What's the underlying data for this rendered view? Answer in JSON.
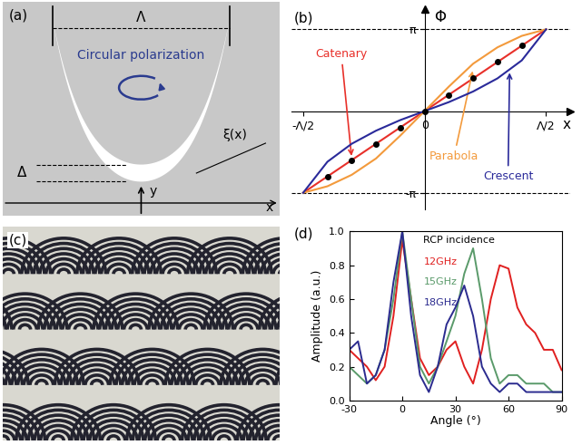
{
  "panel_labels": [
    "(a)",
    "(b)",
    "(c)",
    "(d)"
  ],
  "diagram": {
    "period": "Λ",
    "polarization": "Circular polarization",
    "width": "Δ",
    "y_axis": "y",
    "x_axis": "x",
    "angle": "ξ(x)"
  },
  "chart_data": [
    {
      "type": "line",
      "xlabel": "x",
      "ylabel": "Φ",
      "x": [
        -0.5,
        -0.4,
        -0.3,
        -0.2,
        -0.1,
        0,
        0.1,
        0.2,
        0.3,
        0.4,
        0.5
      ],
      "series": [
        {
          "name": "Catenary",
          "color": "#e8302a",
          "values": [
            -1,
            -0.8,
            -0.6,
            -0.4,
            -0.2,
            0,
            0.2,
            0.4,
            0.6,
            0.8,
            1
          ]
        },
        {
          "name": "Parabola",
          "color": "#f39a3c",
          "values": [
            -1,
            -0.92,
            -0.78,
            -0.58,
            -0.3,
            0,
            0.3,
            0.58,
            0.78,
            0.92,
            1
          ]
        },
        {
          "name": "Crescent",
          "color": "#2a2a9a",
          "values": [
            -1,
            -0.62,
            -0.4,
            -0.24,
            -0.11,
            0,
            0.11,
            0.24,
            0.4,
            0.62,
            1
          ]
        },
        {
          "type": "scatter",
          "color": "#000000",
          "marker": "o",
          "x": [
            -0.4,
            -0.3,
            -0.2,
            -0.1,
            0,
            0.1,
            0.2,
            0.3,
            0.4
          ],
          "values": [
            -0.8,
            -0.6,
            -0.4,
            -0.2,
            0,
            0.2,
            0.4,
            0.6,
            0.8
          ]
        }
      ],
      "xlim": [
        -0.55,
        0.6
      ],
      "ylim": [
        -1.2,
        1.25
      ],
      "xticks": [
        {
          "value": -0.5,
          "label": "-Λ/2"
        },
        0,
        {
          "value": 0.5,
          "label": "Λ/2"
        }
      ],
      "yticks": [
        {
          "value": -1,
          "label": "-π"
        },
        {
          "value": 1,
          "label": "π"
        }
      ]
    },
    {
      "type": "line",
      "xlabel": "Angle (°)",
      "ylabel": "Amplitude (a.u.)",
      "annotations": [
        "RCP incidence"
      ],
      "x": [
        -30,
        -25,
        -20,
        -15,
        -10,
        -5,
        0,
        5,
        10,
        15,
        20,
        25,
        30,
        35,
        40,
        45,
        50,
        55,
        60,
        65,
        70,
        75,
        80,
        85,
        90
      ],
      "series": [
        {
          "name": "12GHz",
          "color": "#e02020",
          "values": [
            0.3,
            0.25,
            0.2,
            0.12,
            0.2,
            0.5,
            0.95,
            0.6,
            0.25,
            0.15,
            0.2,
            0.3,
            0.35,
            0.2,
            0.1,
            0.3,
            0.6,
            0.8,
            0.78,
            0.55,
            0.45,
            0.4,
            0.3,
            0.3,
            0.18
          ]
        },
        {
          "name": "15GHz",
          "color": "#5a9a6a",
          "values": [
            0.2,
            0.15,
            0.1,
            0.15,
            0.3,
            0.6,
            1.0,
            0.6,
            0.2,
            0.1,
            0.2,
            0.35,
            0.5,
            0.75,
            0.9,
            0.6,
            0.25,
            0.1,
            0.15,
            0.15,
            0.1,
            0.1,
            0.1,
            0.05,
            0.05
          ]
        },
        {
          "name": "18GHz",
          "color": "#2b2b8f",
          "values": [
            0.3,
            0.35,
            0.1,
            0.15,
            0.3,
            0.7,
            1.0,
            0.5,
            0.15,
            0.05,
            0.2,
            0.45,
            0.55,
            0.68,
            0.5,
            0.2,
            0.1,
            0.05,
            0.1,
            0.1,
            0.05,
            0.05,
            0.05,
            0.05,
            0.05
          ]
        }
      ],
      "xlim": [
        -30,
        90
      ],
      "ylim": [
        0.0,
        1.0
      ],
      "xticks": [
        -30,
        0,
        30,
        60,
        90
      ],
      "yticks": [
        0.0,
        0.2,
        0.4,
        0.6,
        0.8,
        1.0
      ]
    }
  ]
}
